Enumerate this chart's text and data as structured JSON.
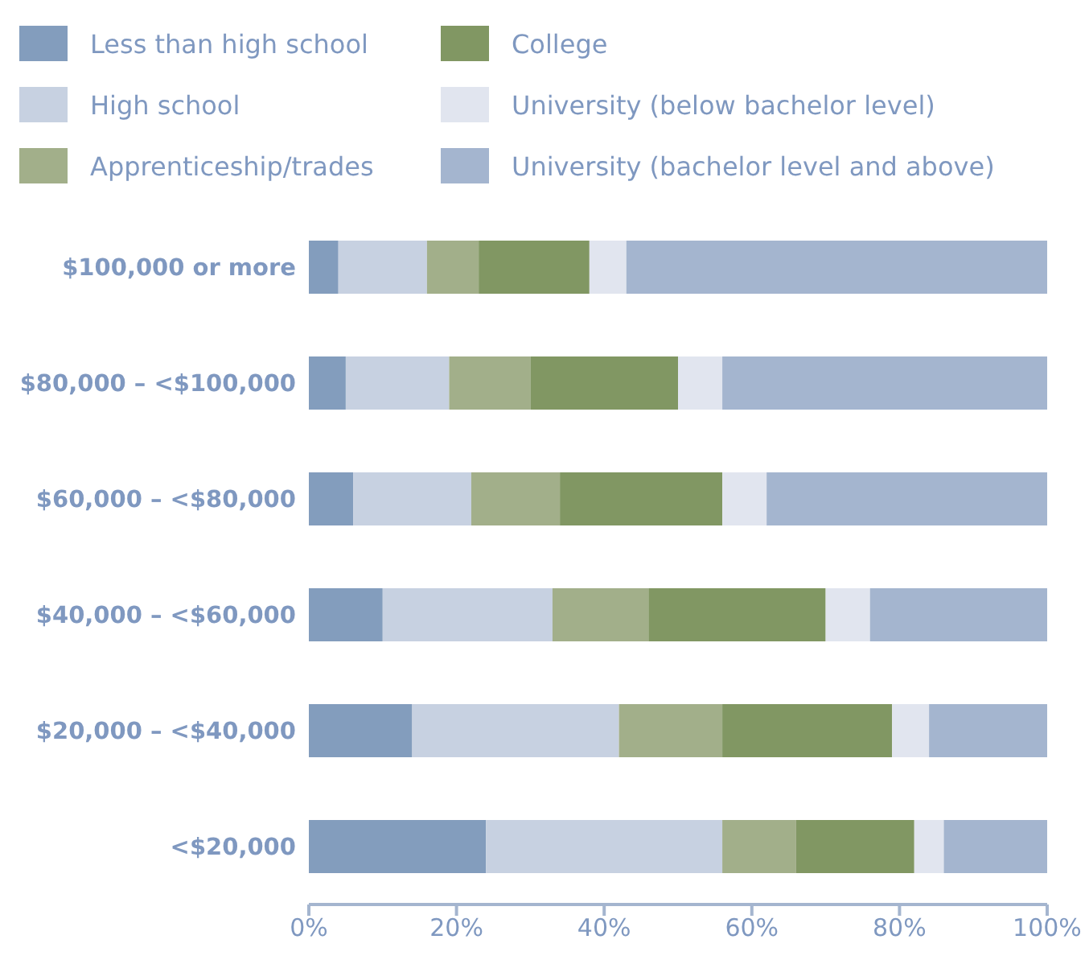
{
  "chart_data": {
    "type": "bar",
    "orientation": "horizontal",
    "stacked": true,
    "legend": "top",
    "grid": false,
    "categories": [
      "$100,000 or more",
      "$80,000 – <$100,000",
      "$60,000 – <$80,000",
      "$40,000 – <$60,000",
      "$20,000 – <$40,000",
      "<$20,000"
    ],
    "series": [
      {
        "name": "Less than high school",
        "color": "#839dbd",
        "values": [
          4,
          5,
          6,
          10,
          14,
          24
        ]
      },
      {
        "name": "High school",
        "color": "#c7d1e1",
        "values": [
          12,
          14,
          16,
          23,
          28,
          32
        ]
      },
      {
        "name": "Apprenticeship/trades",
        "color": "#a2af8a",
        "values": [
          7,
          11,
          12,
          13,
          14,
          10
        ]
      },
      {
        "name": "College",
        "color": "#819763",
        "values": [
          15,
          20,
          22,
          24,
          23,
          16
        ]
      },
      {
        "name": "University (below bachelor level)",
        "color": "#e1e5ef",
        "values": [
          5,
          6,
          6,
          6,
          5,
          4
        ]
      },
      {
        "name": "University (bachelor level and above)",
        "color": "#a4b5cf",
        "values": [
          57,
          44,
          38,
          24,
          16,
          14
        ]
      }
    ],
    "xlim": [
      0,
      100
    ],
    "xticks": [
      {
        "value": 0,
        "label": "0%"
      },
      {
        "value": 20,
        "label": "20%"
      },
      {
        "value": 40,
        "label": "40%"
      },
      {
        "value": 60,
        "label": "60%"
      },
      {
        "value": 80,
        "label": "80%"
      },
      {
        "value": 100,
        "label": "100%"
      }
    ]
  }
}
